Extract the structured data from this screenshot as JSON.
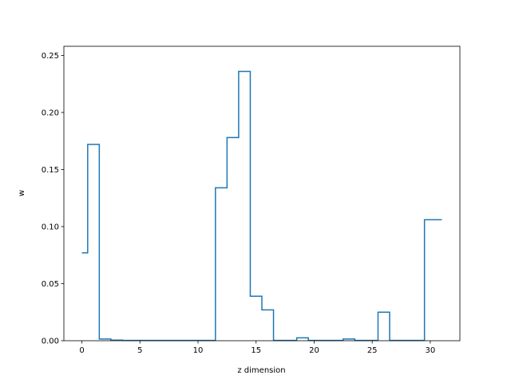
{
  "chart_data": {
    "type": "line",
    "drawstyle": "steps-mid",
    "title": "",
    "xlabel": "z dimension",
    "ylabel": "w",
    "xlim": [
      -1.55,
      32.55
    ],
    "ylim": [
      0.0,
      0.258
    ],
    "xticks": [
      0,
      5,
      10,
      15,
      20,
      25,
      30
    ],
    "yticks": [
      0.0,
      0.05,
      0.1,
      0.15,
      0.2,
      0.25
    ],
    "ytick_labels": [
      "0.00",
      "0.05",
      "0.10",
      "0.15",
      "0.20",
      "0.25"
    ],
    "grid": false,
    "legend": "none",
    "series": [
      {
        "color": "#1f77b4",
        "x": [
          0,
          1,
          2,
          3,
          4,
          5,
          6,
          7,
          8,
          9,
          10,
          11,
          12,
          13,
          14,
          15,
          16,
          17,
          18,
          19,
          20,
          21,
          22,
          23,
          24,
          25,
          26,
          27,
          28,
          29,
          30,
          31
        ],
        "values": [
          0.077,
          0.172,
          0.0015,
          0.0005,
          0.0003,
          0.0003,
          0.0003,
          0.0003,
          0.0003,
          0.0003,
          0.0003,
          0.0003,
          0.134,
          0.178,
          0.236,
          0.039,
          0.027,
          0.0003,
          0.0003,
          0.0025,
          0.0003,
          0.0003,
          0.0003,
          0.0015,
          0.0003,
          0.0003,
          0.025,
          0.0003,
          0.0003,
          0.0003,
          0.106,
          0.106
        ]
      }
    ]
  }
}
